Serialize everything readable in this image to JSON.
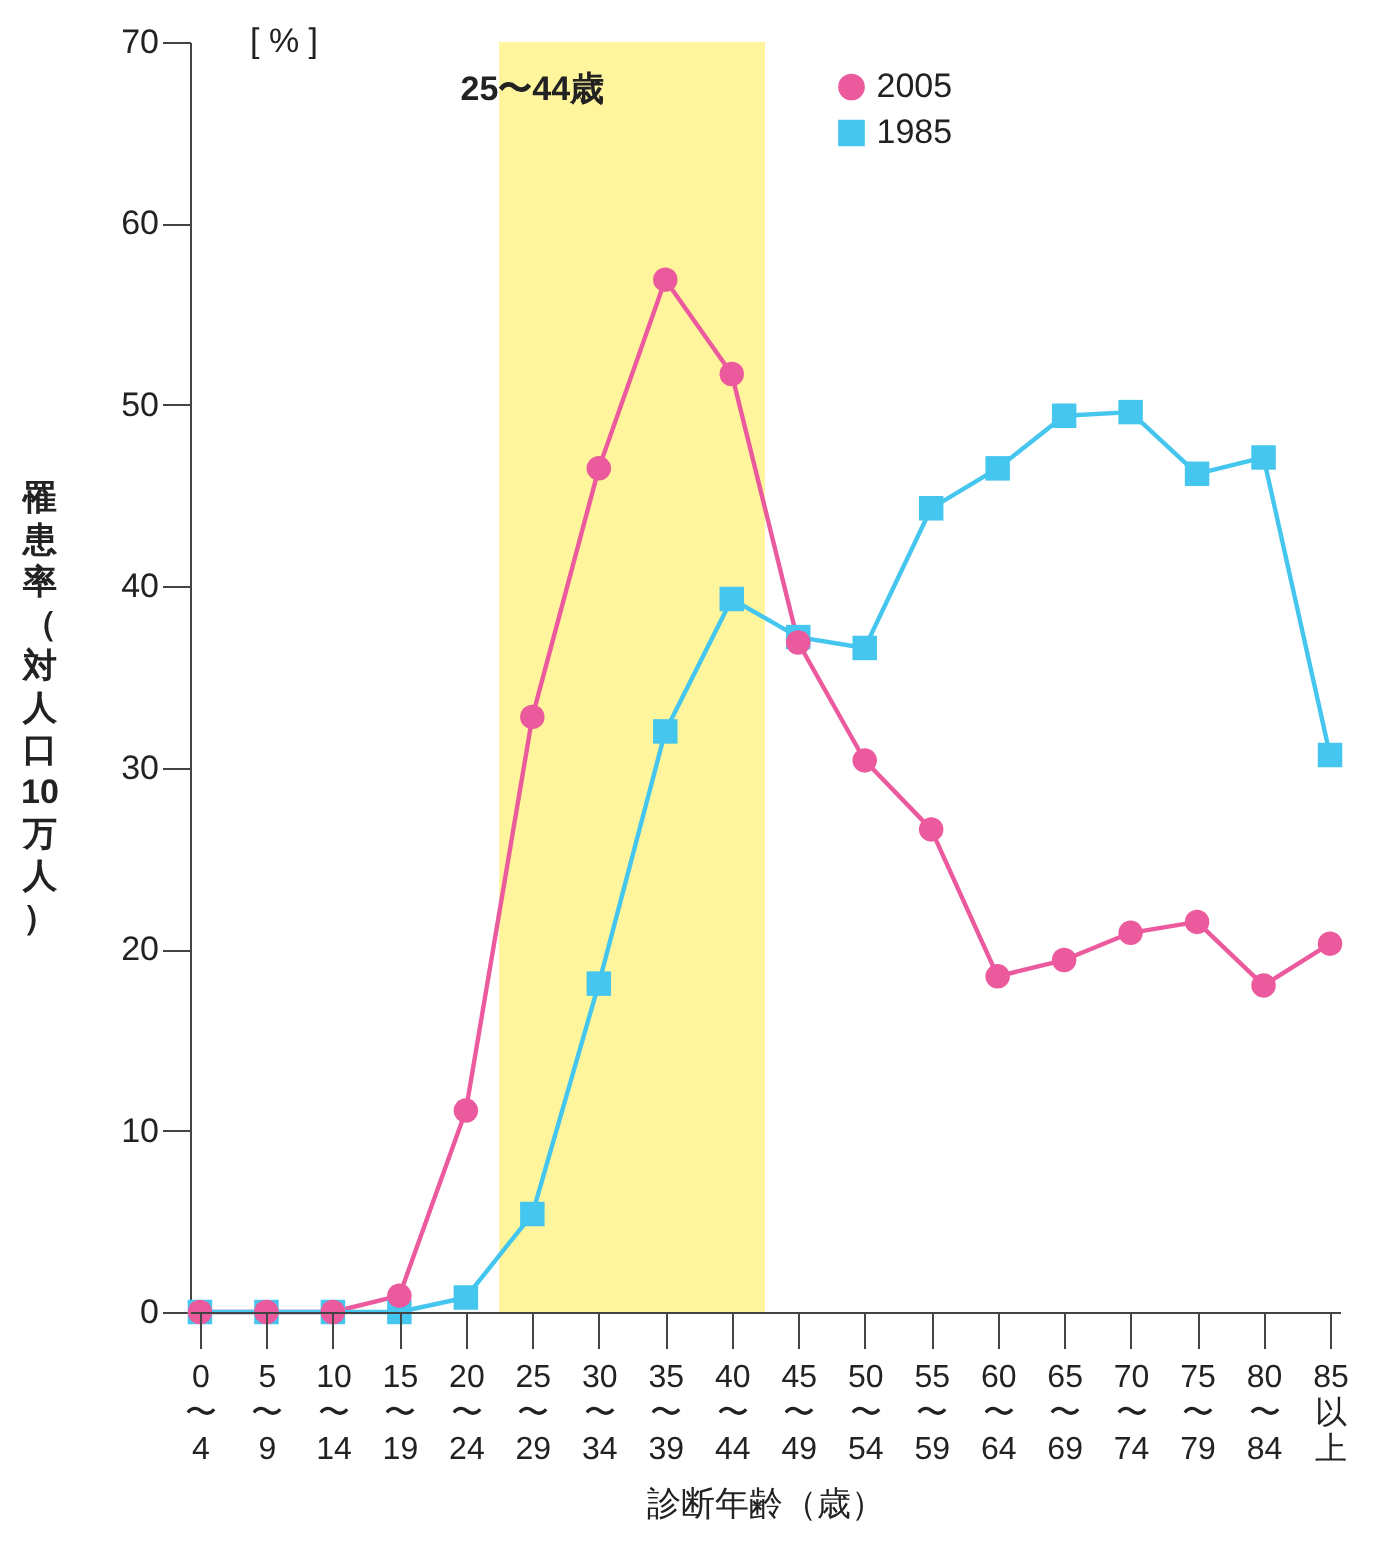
{
  "chart_data": {
    "type": "line",
    "xlabel": "診断年齢（歳）",
    "ylabel": "罹患率（対人口10万人）",
    "categories": [
      "0〜4",
      "5〜9",
      "10〜14",
      "15〜19",
      "20〜24",
      "25〜29",
      "30〜34",
      "35〜39",
      "40〜44",
      "45〜49",
      "50〜54",
      "55〜59",
      "60〜64",
      "65〜69",
      "70〜74",
      "75〜79",
      "80〜84",
      "85以上"
    ],
    "series": [
      {
        "name": "2005",
        "color": "#ec5a9e",
        "marker": "circle",
        "values": [
          0,
          0,
          0,
          0.9,
          11.1,
          32.8,
          46.5,
          56.9,
          51.7,
          36.9,
          30.4,
          26.6,
          18.5,
          19.4,
          20.9,
          21.5,
          18.0,
          20.3
        ]
      },
      {
        "name": "1985",
        "color": "#45c6ef",
        "marker": "square",
        "values": [
          0,
          0,
          0,
          0,
          0.8,
          5.4,
          18.1,
          32.0,
          39.3,
          37.2,
          36.6,
          44.3,
          46.5,
          49.4,
          49.6,
          46.2,
          47.1,
          30.7
        ]
      }
    ],
    "ylim": [
      0,
      70
    ],
    "yticks": [
      0,
      10,
      20,
      30,
      40,
      50,
      60,
      70
    ],
    "grid": false,
    "legend": "top right",
    "bands": [
      {
        "axis": "x",
        "from": "25〜29",
        "to": "40〜44",
        "label": "25〜44歳",
        "color": "#fff59d"
      }
    ],
    "annotations": [
      "[ % ]"
    ]
  }
}
